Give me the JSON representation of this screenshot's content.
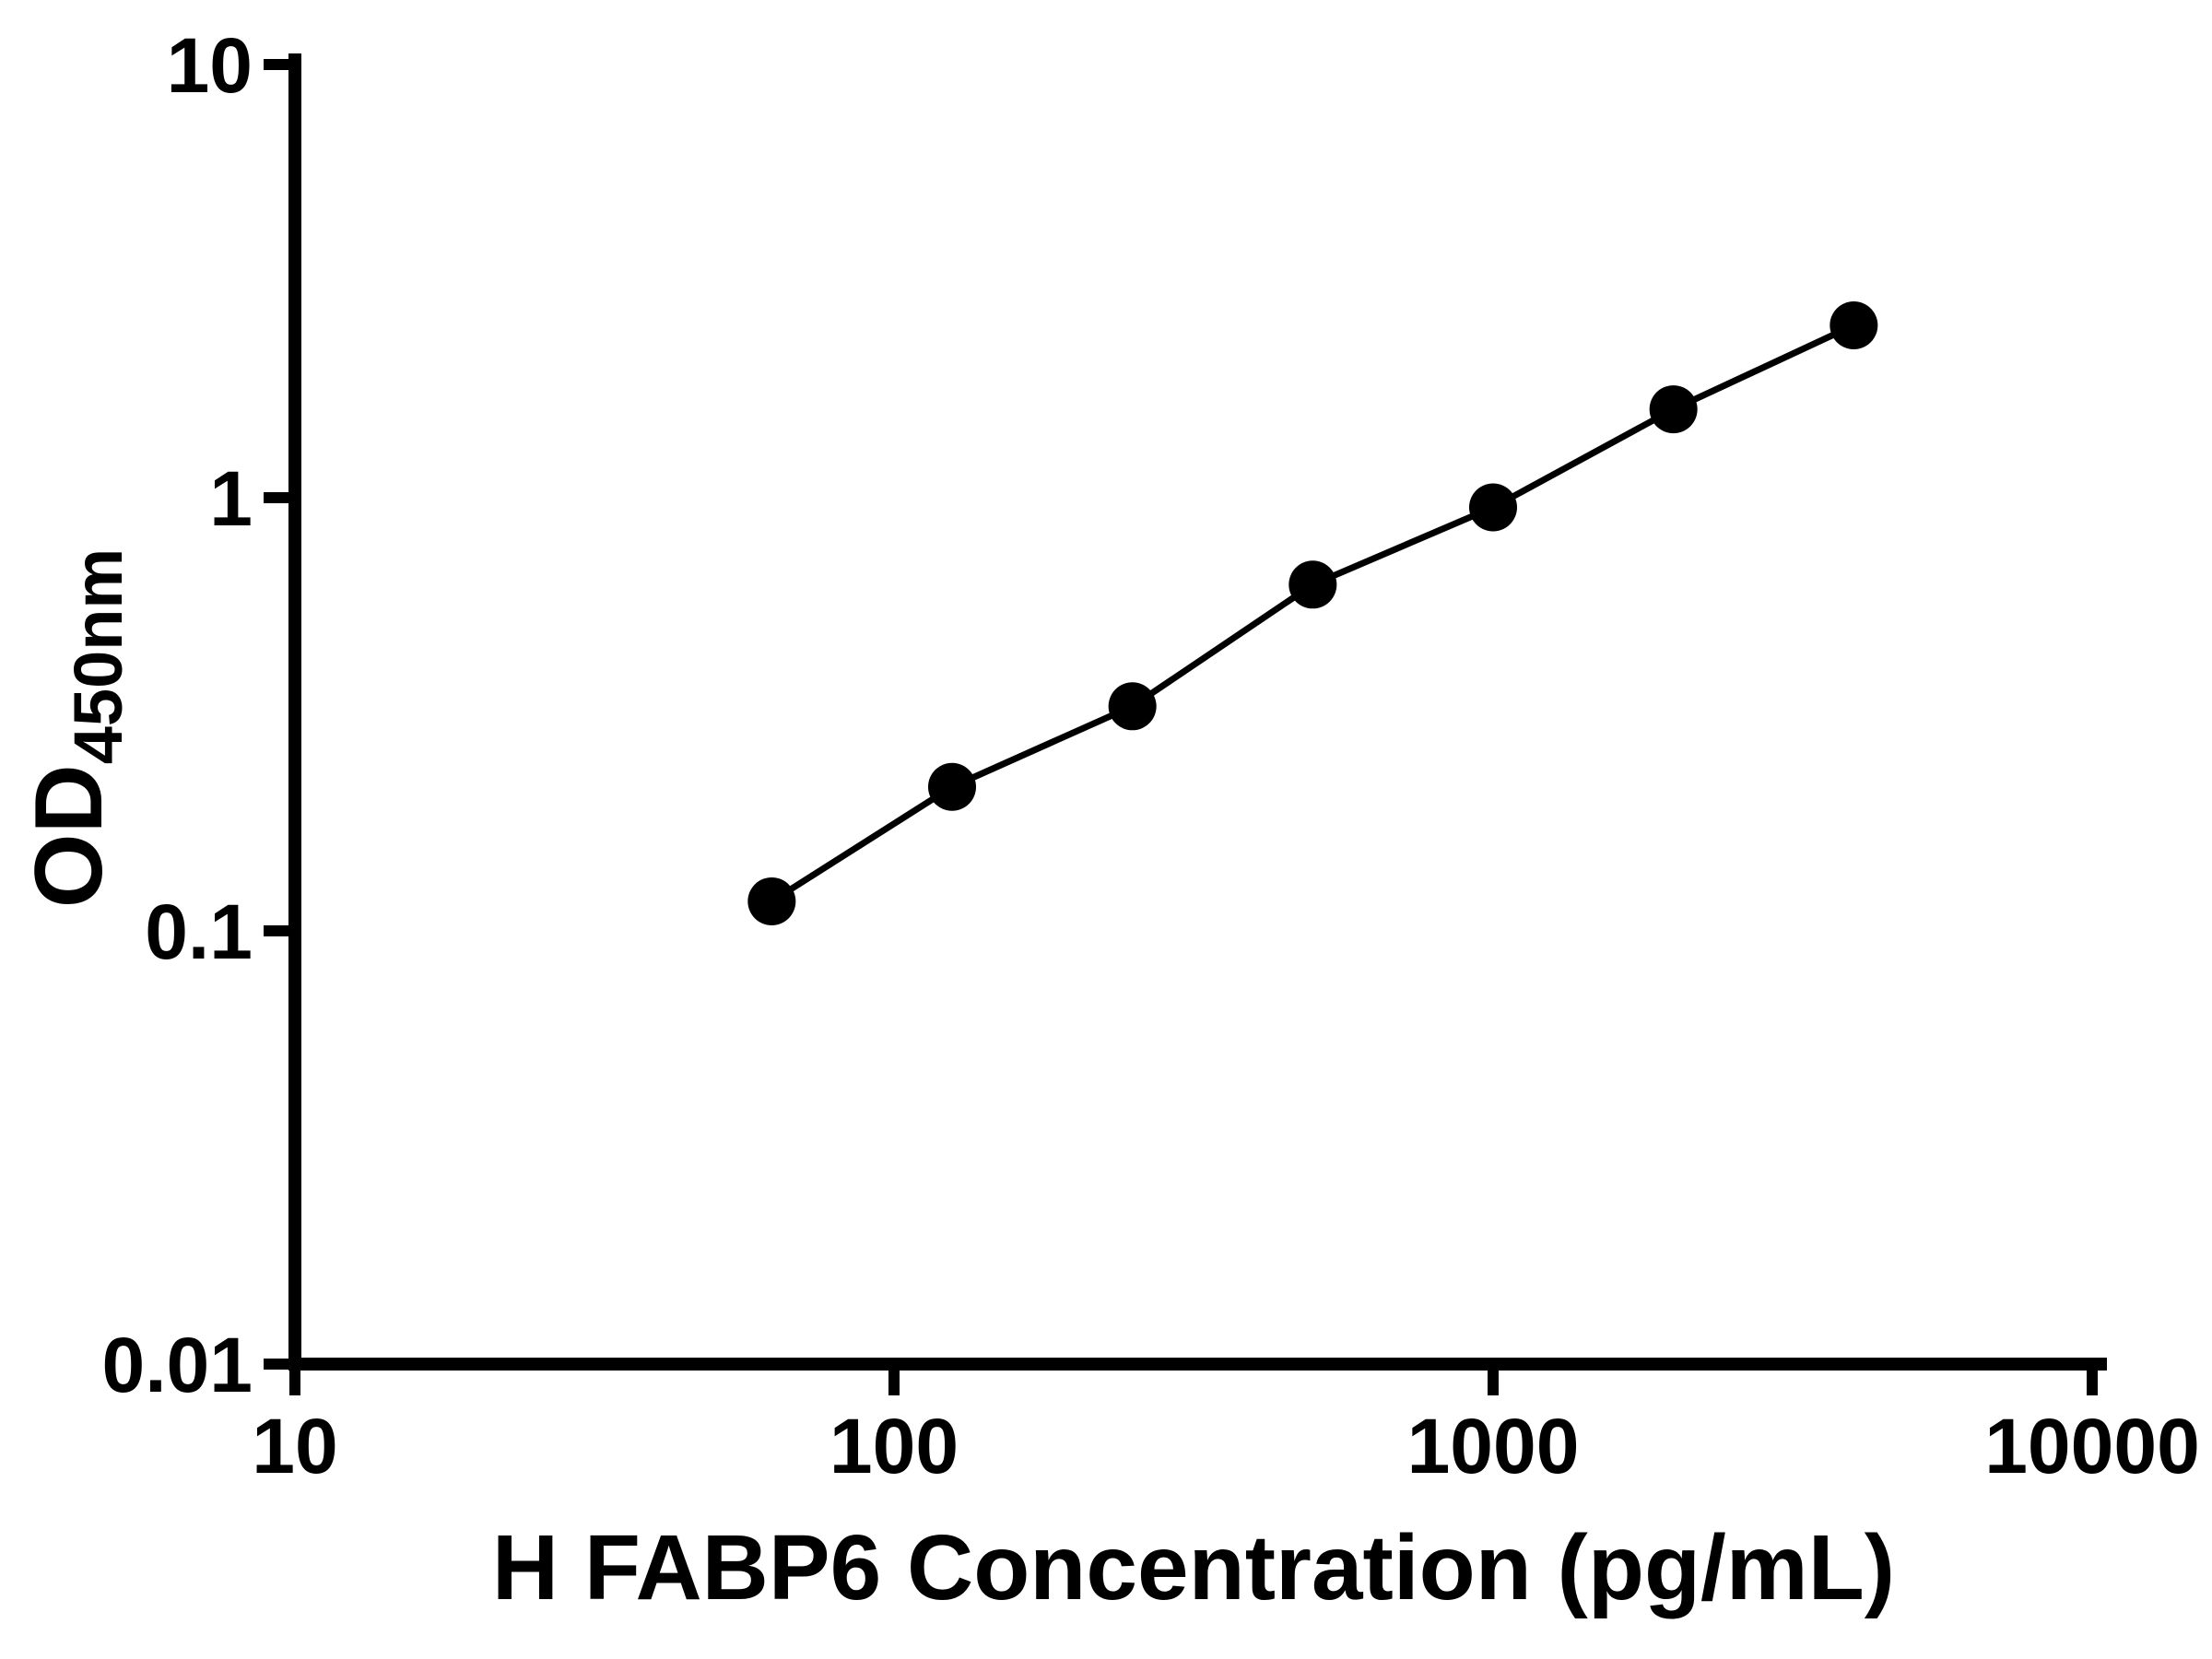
{
  "chart": {
    "xlabel": "H FABP6 Concentration (pg/mL)",
    "ylabel_main": "OD",
    "ylabel_sub": "450nm",
    "ylabel_full": "OD450nm"
  },
  "chart_data": {
    "type": "scatter",
    "title": "",
    "xlabel": "H FABP6 Concentration (pg/mL)",
    "ylabel": "OD450nm",
    "xscale": "log",
    "yscale": "log",
    "xlim": [
      10,
      10000
    ],
    "ylim": [
      0.01,
      10
    ],
    "x": [
      62.5,
      125,
      250,
      500,
      1000,
      2000,
      4000
    ],
    "y": [
      0.117,
      0.215,
      0.33,
      0.63,
      0.95,
      1.6,
      2.5
    ],
    "x_tick_values": [
      10,
      100,
      1000,
      10000
    ],
    "x_tick_labels": [
      "10",
      "100",
      "1000",
      "10000"
    ],
    "y_tick_values": [
      0.01,
      0.1,
      1,
      10
    ],
    "y_tick_labels": [
      "0.01",
      "0.1",
      "1",
      "10"
    ],
    "grid": false,
    "legend": false,
    "line_style": "straight-segments",
    "marker": "circle",
    "marker_color": "#000000",
    "line_color": "#000000",
    "axis_color": "#000000",
    "background_color": "#ffffff"
  }
}
